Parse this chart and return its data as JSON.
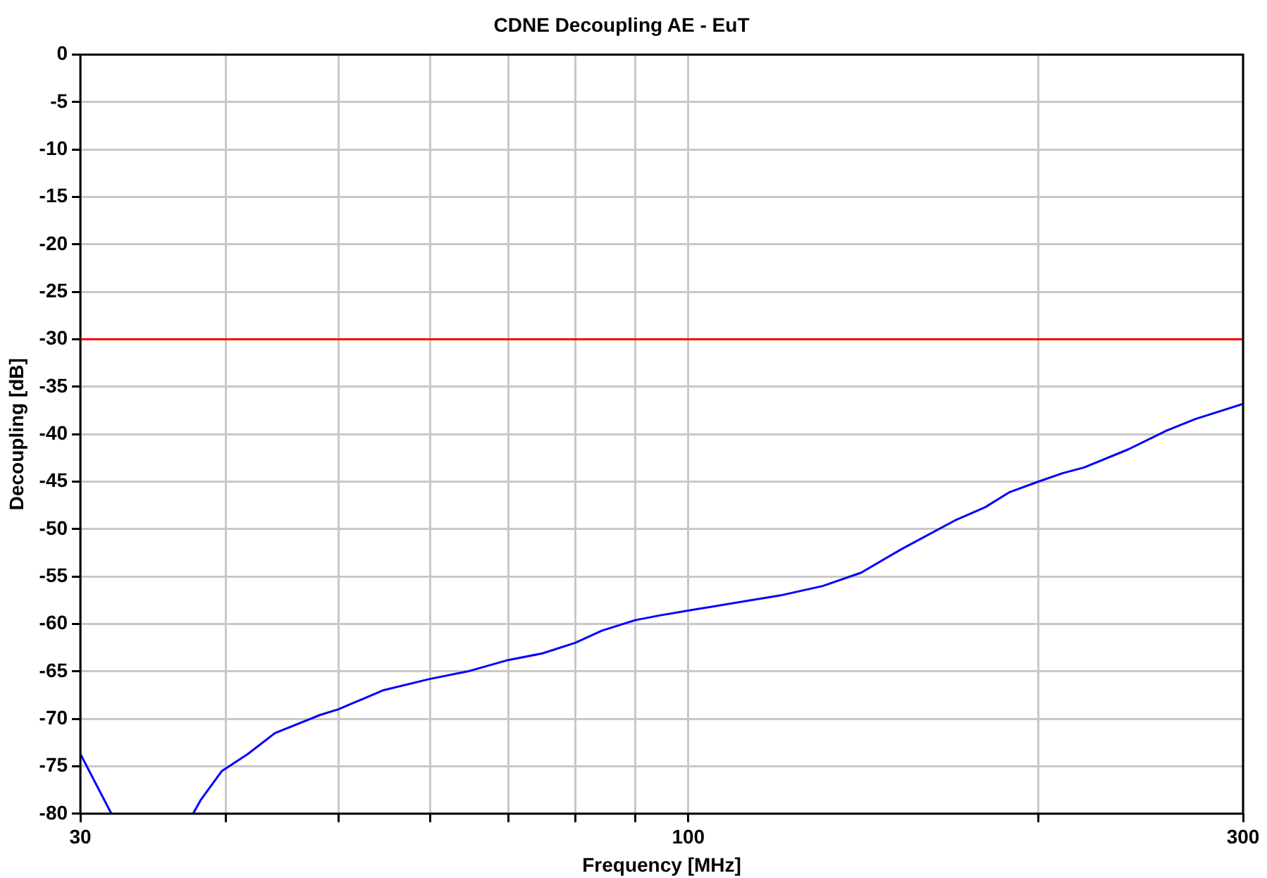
{
  "chart_data": {
    "type": "line",
    "title": "CDNE Decoupling AE - EuT",
    "xlabel": "Frequency [MHz]",
    "ylabel": "Decoupling [dB]",
    "x": [
      30,
      31.9,
      34,
      37.5,
      38.1,
      39.7,
      41.8,
      44.1,
      48.2,
      50,
      54.6,
      59.9,
      64.6,
      70,
      74.9,
      79.9,
      84.3,
      90,
      94.5,
      101,
      119.9,
      130.5,
      140.8,
      152.6,
      169.5,
      180,
      189,
      200,
      210,
      219,
      239,
      258,
      273,
      300
    ],
    "series": [
      {
        "color": "#0000ff",
        "values": [
          -73.7,
          -80,
          null,
          -80,
          -78.5,
          -75.5,
          -73.7,
          -71.5,
          -69.6,
          -69,
          -67,
          -65.8,
          -65,
          -63.8,
          -63.1,
          -62,
          -60.7,
          -59.6,
          -59.1,
          -58.5,
          -57,
          -56,
          -54.6,
          -52.1,
          -49.1,
          -47.7,
          -46.1,
          -45,
          -44.1,
          -43.5,
          -41.6,
          -39.6,
          -38.4,
          -36.8
        ]
      }
    ],
    "log": "x",
    "xlim": [
      30,
      300
    ],
    "xticks": [
      30,
      {
        "value": 40,
        "label": null
      },
      {
        "value": 50,
        "label": null
      },
      {
        "value": 60,
        "label": null
      },
      {
        "value": 70,
        "label": null
      },
      {
        "value": 80,
        "label": null
      },
      {
        "value": 90,
        "label": null
      },
      100,
      {
        "value": 200,
        "label": null
      },
      300
    ],
    "ylim": [
      -80,
      0
    ],
    "yticks": [
      0,
      -5,
      -10,
      -15,
      -20,
      -25,
      -30,
      -35,
      -40,
      -45,
      -50,
      -55,
      -60,
      -65,
      -70,
      -75,
      -80
    ],
    "ref_lines": [
      {
        "axis": "y",
        "value": -30,
        "color": "#ff0000"
      }
    ],
    "grid": true,
    "legend": false,
    "marker": "none",
    "line_style": "solid"
  }
}
